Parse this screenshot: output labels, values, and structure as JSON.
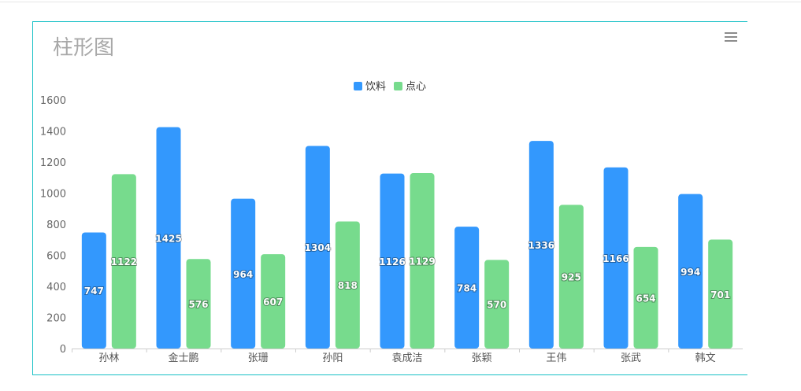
{
  "chart_data": {
    "type": "bar",
    "title": "柱形图",
    "categories": [
      "孙林",
      "金士鹏",
      "张珊",
      "孙阳",
      "袁成洁",
      "张颖",
      "王伟",
      "张武",
      "韩文"
    ],
    "series": [
      {
        "name": "饮料",
        "color": "#3398fd",
        "values": [
          747,
          1425,
          964,
          1304,
          1126,
          784,
          1336,
          1166,
          994
        ]
      },
      {
        "name": "点心",
        "color": "#77db8d",
        "values": [
          1122,
          576,
          607,
          818,
          1129,
          570,
          925,
          654,
          701
        ]
      }
    ],
    "yticks": [
      "0",
      "200",
      "400",
      "600",
      "800",
      "1000",
      "1200",
      "1400",
      "1600"
    ],
    "ylim": [
      0,
      1600
    ],
    "xlabel": "",
    "ylabel": "",
    "legend_position": "top-center",
    "data_labels": "inside-center",
    "grid": false
  },
  "toolbar": {
    "menu_icon": "hamburger-menu-icon"
  }
}
